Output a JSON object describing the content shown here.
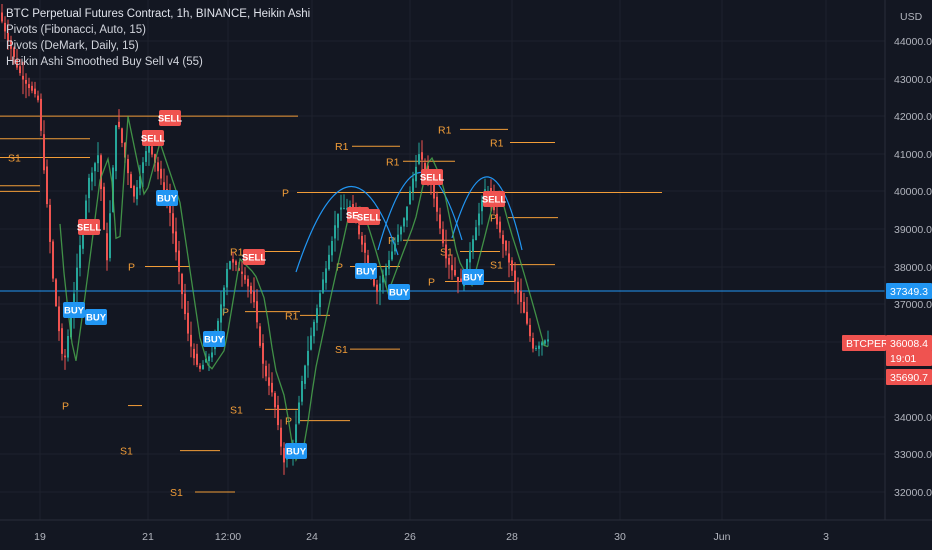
{
  "legend": {
    "main": "BTC Perpetual Futures Contract, 1h, BINANCE, Heikin Ashi",
    "ind1": "Pivots (Fibonacci, Auto, 15)",
    "ind2": "Pivots (DeMark, Daily, 15)",
    "ind3": "Heikin Ashi Smoothed Buy Sell v4 (55)"
  },
  "price_axis": {
    "currency": "USD",
    "ticks": [
      "44000.0",
      "43000.0",
      "42000.0",
      "41000.0",
      "40000.0",
      "39000.0",
      "38000.0",
      "37000.0",
      "36000.0",
      "35000.0",
      "34000.0",
      "33000.0",
      "32000.0"
    ],
    "tags": [
      {
        "name": "horizontal-line-price",
        "text": "37349.3",
        "color": "#2196f3"
      },
      {
        "name": "symbol-label",
        "text": "BTCPERP",
        "color": "#ef5350"
      },
      {
        "name": "last-price",
        "text": "36008.4",
        "color": "#ef5350"
      },
      {
        "name": "countdown",
        "text": "19:01",
        "color": "#ef5350"
      },
      {
        "name": "low-price",
        "text": "35690.7",
        "color": "#ef5350"
      }
    ]
  },
  "time_axis": {
    "ticks": [
      "19",
      "21",
      "12:00",
      "24",
      "26",
      "28",
      "30",
      "Jun",
      "3"
    ]
  },
  "colors": {
    "background": "#131722",
    "up": "#26a69a",
    "down": "#ef5350",
    "pivot": "#f29d38",
    "buy": "#2196f3",
    "sell": "#ef5350",
    "hline": "#2196f3",
    "arc": "#2196f3"
  },
  "chart_data": {
    "type": "candlestick",
    "symbol": "BTCPERP",
    "price_range": [
      31500,
      45300
    ],
    "hline_price": 37349.3,
    "last_price": 36008.4,
    "pivot_levels": [
      {
        "label": "",
        "price": 42000
      },
      {
        "label": "S1",
        "price": 40900
      },
      {
        "label": "R1",
        "price": 41400
      },
      {
        "label": "",
        "price": 40000
      },
      {
        "label": "R1",
        "price": 40150
      },
      {
        "label": "P",
        "price": 38000
      },
      {
        "label": "P",
        "price": 34300
      },
      {
        "label": "S1",
        "price": 33100
      },
      {
        "label": "S1",
        "price": 32000
      },
      {
        "label": "R1",
        "price": 38400
      },
      {
        "label": "P",
        "price": 36800
      },
      {
        "label": "R1",
        "price": 36700
      },
      {
        "label": "S1",
        "price": 34200
      },
      {
        "label": "P",
        "price": 33900
      },
      {
        "label": "P",
        "price": 39970
      },
      {
        "label": "R1",
        "price": 41200
      },
      {
        "label": "S1",
        "price": 35800
      },
      {
        "label": "R1",
        "price": 40800
      },
      {
        "label": "P",
        "price": 38700
      },
      {
        "label": "P",
        "price": 38000
      },
      {
        "label": "S1",
        "price": 38400
      },
      {
        "label": "P",
        "price": 37600
      },
      {
        "label": "R1",
        "price": 41650
      },
      {
        "label": "R1",
        "price": 41300
      },
      {
        "label": "P",
        "price": 39300
      },
      {
        "label": "S1",
        "price": 38050
      }
    ],
    "signals": [
      {
        "type": "SELL"
      },
      {
        "type": "SELL"
      },
      {
        "type": "SELL"
      },
      {
        "type": "BUY"
      },
      {
        "type": "SELL"
      },
      {
        "type": "BUY"
      },
      {
        "type": "BUY"
      },
      {
        "type": "BUY"
      },
      {
        "type": "SELL"
      },
      {
        "type": "SELL"
      },
      {
        "type": "BUY"
      },
      {
        "type": "BUY"
      },
      {
        "type": "SELL"
      },
      {
        "type": "BUY"
      },
      {
        "type": "SELL"
      },
      {
        "type": "BUY"
      }
    ]
  }
}
